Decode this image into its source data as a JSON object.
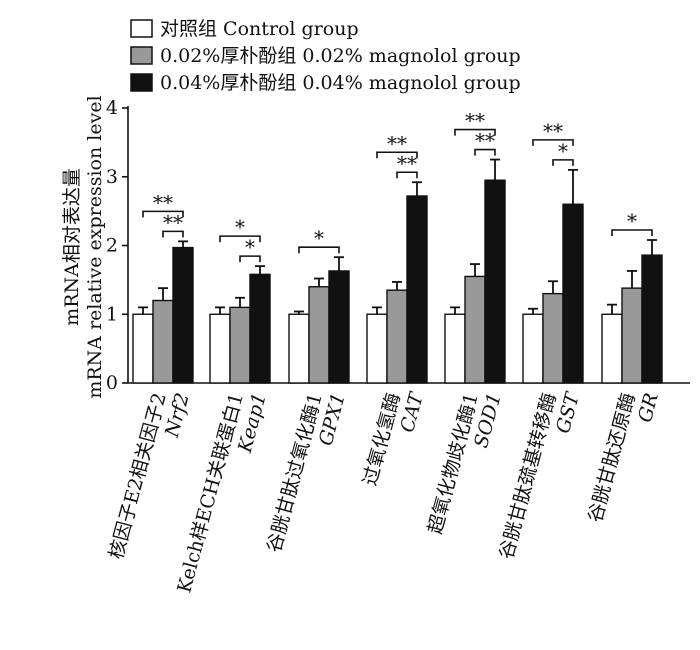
{
  "chart_data": {
    "type": "bar",
    "ylabel": "mRNA相对表达量",
    "ylabel_en": "mRNA relative expression level",
    "ylim": [
      0,
      4
    ],
    "yticks": [
      "0",
      "1",
      "2",
      "3",
      "4"
    ],
    "legend_position": "top-left",
    "categories": [
      {
        "cn": "核因子E2相关因子2",
        "gene": "Nrf2"
      },
      {
        "cn": "Kelch样ECH关联蛋白1",
        "gene": "Keap1"
      },
      {
        "cn": "谷胱甘肽过氧化酶1",
        "gene": "GPX1"
      },
      {
        "cn": "过氧化氢酶",
        "gene": "CAT"
      },
      {
        "cn": "超氧化物歧化酶1",
        "gene": "SOD1"
      },
      {
        "cn": "谷胱甘肽巯基转移酶",
        "gene": "GST"
      },
      {
        "cn": "谷胱甘肽还原酶",
        "gene": "GR"
      }
    ],
    "series": [
      {
        "name": "对照组 Control group",
        "color": "#ffffff",
        "values": [
          1.0,
          1.0,
          1.0,
          1.0,
          1.0,
          1.0,
          1.0
        ],
        "errors": [
          0.1,
          0.1,
          0.04,
          0.1,
          0.1,
          0.08,
          0.14
        ]
      },
      {
        "name": "0.02%厚朴酚组 0.02% magnolol group",
        "color": "#999999",
        "values": [
          1.2,
          1.1,
          1.4,
          1.35,
          1.55,
          1.3,
          1.38
        ],
        "errors": [
          0.18,
          0.14,
          0.12,
          0.12,
          0.18,
          0.18,
          0.25
        ]
      },
      {
        "name": "0.04%厚朴酚组 0.04% magnolol group",
        "color": "#111111",
        "values": [
          1.97,
          1.58,
          1.63,
          2.72,
          2.95,
          2.6,
          1.86
        ],
        "errors": [
          0.09,
          0.12,
          0.2,
          0.2,
          0.3,
          0.5,
          0.22
        ]
      }
    ],
    "significance": [
      {
        "category": 0,
        "pairs": [
          {
            "from": 0,
            "to": 2,
            "label": "**"
          },
          {
            "from": 1,
            "to": 2,
            "label": "**"
          }
        ]
      },
      {
        "category": 1,
        "pairs": [
          {
            "from": 0,
            "to": 2,
            "label": "*"
          },
          {
            "from": 1,
            "to": 2,
            "label": "*"
          }
        ]
      },
      {
        "category": 2,
        "pairs": [
          {
            "from": 0,
            "to": 2,
            "label": "*"
          }
        ]
      },
      {
        "category": 3,
        "pairs": [
          {
            "from": 0,
            "to": 2,
            "label": "**"
          },
          {
            "from": 1,
            "to": 2,
            "label": "**"
          }
        ]
      },
      {
        "category": 4,
        "pairs": [
          {
            "from": 0,
            "to": 2,
            "label": "**"
          },
          {
            "from": 1,
            "to": 2,
            "label": "**"
          }
        ]
      },
      {
        "category": 5,
        "pairs": [
          {
            "from": 0,
            "to": 2,
            "label": "**"
          },
          {
            "from": 1,
            "to": 2,
            "label": "*"
          }
        ]
      },
      {
        "category": 6,
        "pairs": [
          {
            "from": 0,
            "to": 2,
            "label": "*"
          }
        ]
      }
    ]
  }
}
